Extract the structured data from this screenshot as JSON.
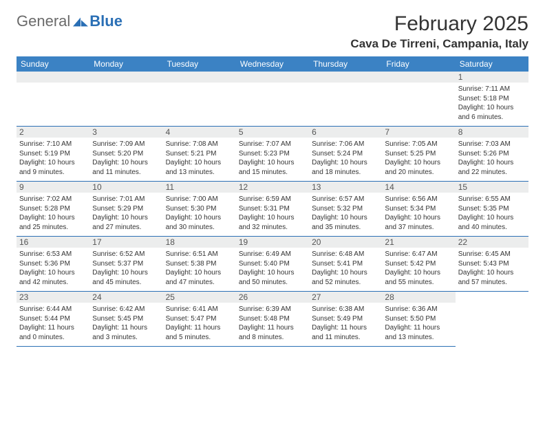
{
  "logo": {
    "part1": "General",
    "part2": "Blue"
  },
  "title": "February 2025",
  "location": "Cava De Tirreni, Campania, Italy",
  "colors": {
    "header_bg": "#3b82c4",
    "header_text": "#ffffff",
    "daynum_bg": "#eceded",
    "border": "#2a6fb5",
    "logo_gray": "#6a6a6a",
    "logo_blue": "#2a6fb5",
    "text": "#333333"
  },
  "days_of_week": [
    "Sunday",
    "Monday",
    "Tuesday",
    "Wednesday",
    "Thursday",
    "Friday",
    "Saturday"
  ],
  "weeks": [
    [
      null,
      null,
      null,
      null,
      null,
      null,
      {
        "n": "1",
        "sunrise": "7:11 AM",
        "sunset": "5:18 PM",
        "dl_h": "10",
        "dl_m": "6"
      }
    ],
    [
      {
        "n": "2",
        "sunrise": "7:10 AM",
        "sunset": "5:19 PM",
        "dl_h": "10",
        "dl_m": "9"
      },
      {
        "n": "3",
        "sunrise": "7:09 AM",
        "sunset": "5:20 PM",
        "dl_h": "10",
        "dl_m": "11"
      },
      {
        "n": "4",
        "sunrise": "7:08 AM",
        "sunset": "5:21 PM",
        "dl_h": "10",
        "dl_m": "13"
      },
      {
        "n": "5",
        "sunrise": "7:07 AM",
        "sunset": "5:23 PM",
        "dl_h": "10",
        "dl_m": "15"
      },
      {
        "n": "6",
        "sunrise": "7:06 AM",
        "sunset": "5:24 PM",
        "dl_h": "10",
        "dl_m": "18"
      },
      {
        "n": "7",
        "sunrise": "7:05 AM",
        "sunset": "5:25 PM",
        "dl_h": "10",
        "dl_m": "20"
      },
      {
        "n": "8",
        "sunrise": "7:03 AM",
        "sunset": "5:26 PM",
        "dl_h": "10",
        "dl_m": "22"
      }
    ],
    [
      {
        "n": "9",
        "sunrise": "7:02 AM",
        "sunset": "5:28 PM",
        "dl_h": "10",
        "dl_m": "25"
      },
      {
        "n": "10",
        "sunrise": "7:01 AM",
        "sunset": "5:29 PM",
        "dl_h": "10",
        "dl_m": "27"
      },
      {
        "n": "11",
        "sunrise": "7:00 AM",
        "sunset": "5:30 PM",
        "dl_h": "10",
        "dl_m": "30"
      },
      {
        "n": "12",
        "sunrise": "6:59 AM",
        "sunset": "5:31 PM",
        "dl_h": "10",
        "dl_m": "32"
      },
      {
        "n": "13",
        "sunrise": "6:57 AM",
        "sunset": "5:32 PM",
        "dl_h": "10",
        "dl_m": "35"
      },
      {
        "n": "14",
        "sunrise": "6:56 AM",
        "sunset": "5:34 PM",
        "dl_h": "10",
        "dl_m": "37"
      },
      {
        "n": "15",
        "sunrise": "6:55 AM",
        "sunset": "5:35 PM",
        "dl_h": "10",
        "dl_m": "40"
      }
    ],
    [
      {
        "n": "16",
        "sunrise": "6:53 AM",
        "sunset": "5:36 PM",
        "dl_h": "10",
        "dl_m": "42"
      },
      {
        "n": "17",
        "sunrise": "6:52 AM",
        "sunset": "5:37 PM",
        "dl_h": "10",
        "dl_m": "45"
      },
      {
        "n": "18",
        "sunrise": "6:51 AM",
        "sunset": "5:38 PM",
        "dl_h": "10",
        "dl_m": "47"
      },
      {
        "n": "19",
        "sunrise": "6:49 AM",
        "sunset": "5:40 PM",
        "dl_h": "10",
        "dl_m": "50"
      },
      {
        "n": "20",
        "sunrise": "6:48 AM",
        "sunset": "5:41 PM",
        "dl_h": "10",
        "dl_m": "52"
      },
      {
        "n": "21",
        "sunrise": "6:47 AM",
        "sunset": "5:42 PM",
        "dl_h": "10",
        "dl_m": "55"
      },
      {
        "n": "22",
        "sunrise": "6:45 AM",
        "sunset": "5:43 PM",
        "dl_h": "10",
        "dl_m": "57"
      }
    ],
    [
      {
        "n": "23",
        "sunrise": "6:44 AM",
        "sunset": "5:44 PM",
        "dl_h": "11",
        "dl_m": "0"
      },
      {
        "n": "24",
        "sunrise": "6:42 AM",
        "sunset": "5:45 PM",
        "dl_h": "11",
        "dl_m": "3"
      },
      {
        "n": "25",
        "sunrise": "6:41 AM",
        "sunset": "5:47 PM",
        "dl_h": "11",
        "dl_m": "5"
      },
      {
        "n": "26",
        "sunrise": "6:39 AM",
        "sunset": "5:48 PM",
        "dl_h": "11",
        "dl_m": "8"
      },
      {
        "n": "27",
        "sunrise": "6:38 AM",
        "sunset": "5:49 PM",
        "dl_h": "11",
        "dl_m": "11"
      },
      {
        "n": "28",
        "sunrise": "6:36 AM",
        "sunset": "5:50 PM",
        "dl_h": "11",
        "dl_m": "13"
      },
      null
    ]
  ],
  "labels": {
    "sunrise": "Sunrise:",
    "sunset": "Sunset:",
    "daylight": "Daylight:",
    "hours": "hours",
    "and": "and",
    "minutes": "minutes."
  }
}
